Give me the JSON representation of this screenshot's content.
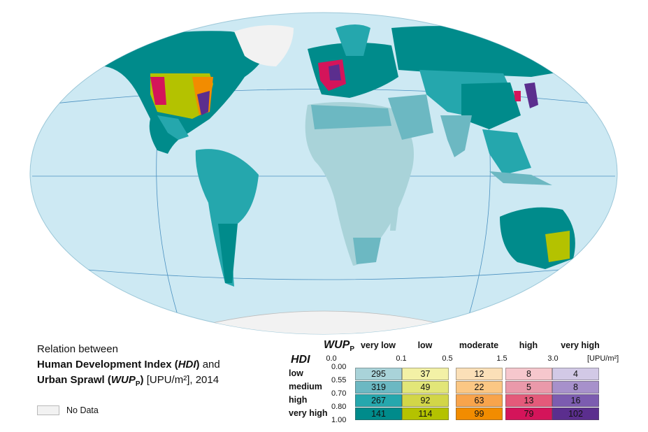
{
  "caption": {
    "line1": "Relation between",
    "line2_bold": "Human Development Index (",
    "line2_italic": "HDI",
    "line2_bold_close": ")",
    "line2_tail": " and",
    "line3_bold": "Urban Sprawl (",
    "line3_italic": "WUP",
    "line3_sub": "P",
    "line3_bold_close": ")",
    "line3_tail": " [UPU/m²], 2014"
  },
  "no_data_label": "No Data",
  "legend": {
    "wup_title": "WUP",
    "wup_sub": "P",
    "hdi_title": "HDI",
    "unit": "[UPU/m²]",
    "columns": [
      "very low",
      "low",
      "moderate",
      "high",
      "very high"
    ],
    "x_ticks": [
      "0.0",
      "0.1",
      "0.5",
      "1.5",
      "3.0"
    ],
    "rows": [
      "low",
      "medium",
      "high",
      "very high"
    ],
    "y_ticks": [
      "0.00",
      "0.55",
      "0.70",
      "0.80",
      "1.00"
    ],
    "counts": [
      [
        "295",
        "37",
        "12",
        "8",
        "4"
      ],
      [
        "319",
        "49",
        "22",
        "5",
        "8"
      ],
      [
        "267",
        "92",
        "63",
        "13",
        "16"
      ],
      [
        "141",
        "114",
        "99",
        "79",
        "102"
      ]
    ],
    "colors": [
      [
        "#a9d3d9",
        "#f3f1a6",
        "#fbe0b8",
        "#f6c7cd",
        "#d2c9e6"
      ],
      [
        "#6cb8c2",
        "#e2e678",
        "#fbc784",
        "#ea99aa",
        "#a791cb"
      ],
      [
        "#25a7ad",
        "#d2d648",
        "#f8a44c",
        "#e45a7a",
        "#7c5cb0"
      ],
      [
        "#008b8b",
        "#b4c200",
        "#f28c00",
        "#d4145a",
        "#5b2e8e"
      ]
    ]
  },
  "map": {
    "ocean_color": "#cde9f3",
    "graticule_color": "#4a90c0",
    "land_colors": {
      "very_low_low": "#a9d3d9",
      "very_low_medium": "#6cb8c2",
      "very_low_high": "#25a7ad",
      "very_low_very_high": "#008b8b",
      "low_very_high": "#b4c200",
      "moderate_very_high": "#f28c00",
      "high_very_high": "#d4145a",
      "very_high_very_high": "#5b2e8e",
      "no_data": "#f2f2f2"
    }
  }
}
